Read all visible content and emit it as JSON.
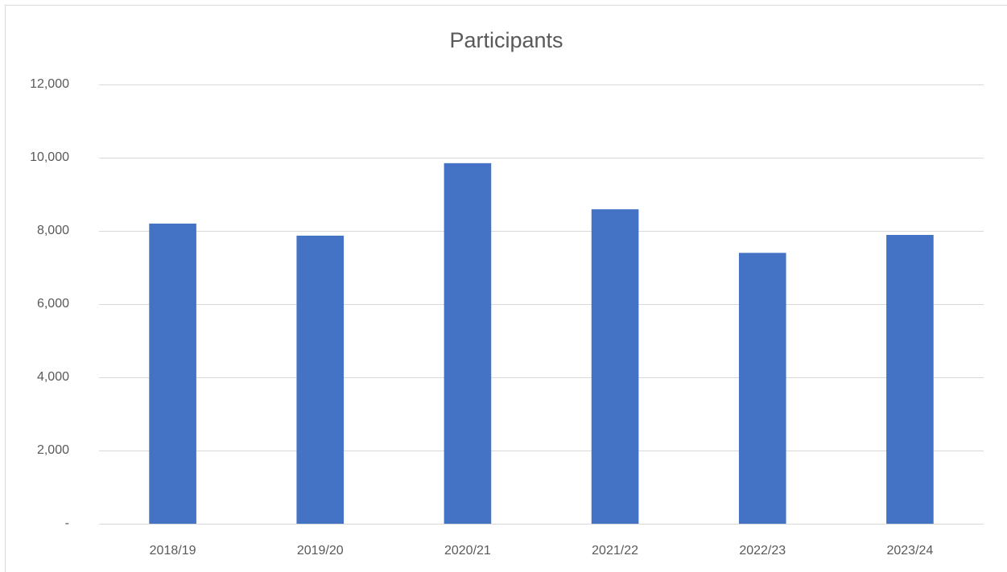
{
  "chart_data": {
    "type": "bar",
    "title": "Participants",
    "categories": [
      "2018/19",
      "2019/20",
      "2020/21",
      "2021/22",
      "2022/23",
      "2023/24"
    ],
    "values": [
      8200,
      7870,
      9850,
      8590,
      7400,
      7890
    ],
    "color": "#4472c4",
    "ylim": [
      0,
      12000
    ],
    "yticks": [
      {
        "value": 0,
        "label": "-"
      },
      {
        "value": 2000,
        "label": "2,000"
      },
      {
        "value": 4000,
        "label": "4,000"
      },
      {
        "value": 6000,
        "label": "6,000"
      },
      {
        "value": 8000,
        "label": "8,000"
      },
      {
        "value": 10000,
        "label": "10,000"
      },
      {
        "value": 12000,
        "label": "12,000"
      }
    ],
    "grid": true
  }
}
